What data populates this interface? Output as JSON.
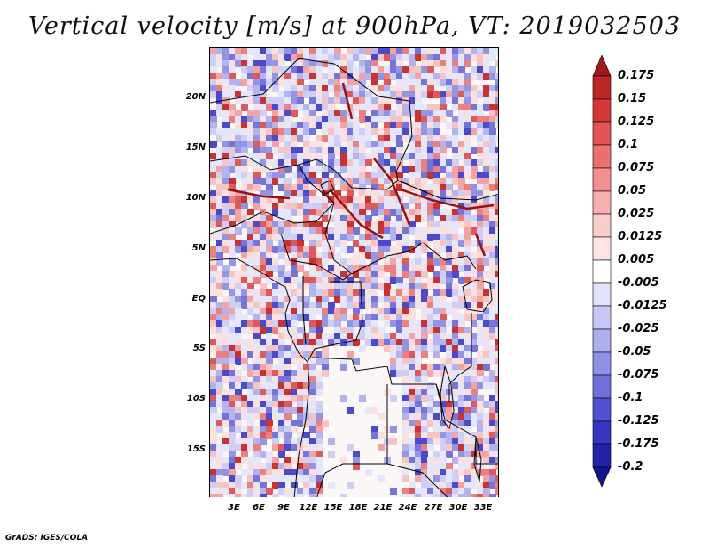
{
  "title": "Vertical velocity [m/s] at 900hPa, VT: 2019032503",
  "credit": "GrADS: IGES/COLA",
  "map": {
    "region": "Central Africa",
    "lat_labels": [
      "20N",
      "15N",
      "10N",
      "5N",
      "EQ",
      "5S",
      "10S",
      "15S"
    ],
    "lon_labels": [
      "3E",
      "6E",
      "9E",
      "12E",
      "15E",
      "18E",
      "21E",
      "24E",
      "27E",
      "30E",
      "33E"
    ]
  },
  "colorbar": {
    "labels": [
      "0.175",
      "0.15",
      "0.125",
      "0.1",
      "0.075",
      "0.05",
      "0.025",
      "0.0125",
      "0.005",
      "-0.005",
      "-0.0125",
      "-0.025",
      "-0.05",
      "-0.075",
      "-0.1",
      "-0.125",
      "-0.175",
      "-0.2"
    ],
    "colors": [
      "#a01818",
      "#bf2626",
      "#d63636",
      "#e25353",
      "#ec7070",
      "#f29090",
      "#f6b0b0",
      "#f9cccc",
      "#fce4e4",
      "#ffffff",
      "#e2e2fb",
      "#c8c8f5",
      "#aeaeee",
      "#9090e6",
      "#7070dc",
      "#5050d0",
      "#3535bf",
      "#2222aa",
      "#141490"
    ]
  }
}
